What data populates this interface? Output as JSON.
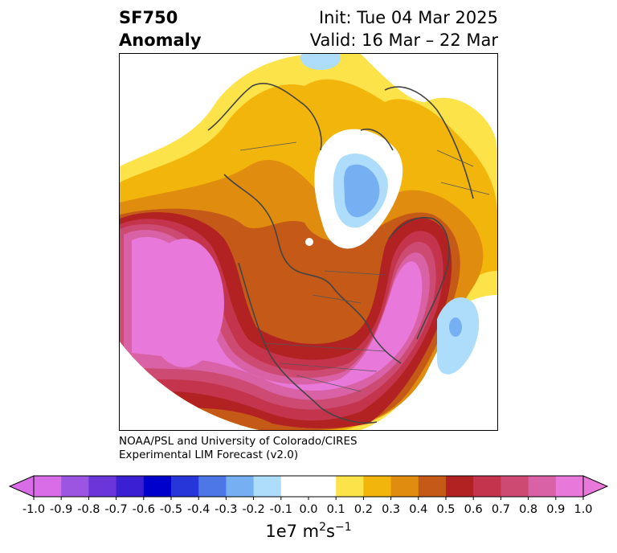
{
  "header": {
    "variable": "SF750",
    "subtitle": "Anomaly",
    "init": "Init: Tue 04 Mar 2025",
    "valid": "Valid: 16 Mar – 22 Mar"
  },
  "credit": {
    "line1": "NOAA/PSL and University of Colorado/CIRES",
    "line2": "Experimental LIM Forecast (v2.0)"
  },
  "colorbar": {
    "ticks": [
      "-1.0",
      "-0.9",
      "-0.8",
      "-0.7",
      "-0.6",
      "-0.5",
      "-0.4",
      "-0.3",
      "-0.2",
      "-0.1",
      "0.0",
      "0.1",
      "0.2",
      "0.3",
      "0.4",
      "0.5",
      "0.6",
      "0.7",
      "0.8",
      "0.9",
      "1.0"
    ],
    "colors": [
      "#d96de8",
      "#9b55e1",
      "#6a36da",
      "#3b1fd3",
      "#0000cc",
      "#2636d9",
      "#4d76e6",
      "#76b0f2",
      "#aedcfb",
      "#ffffff",
      "#ffffff",
      "#fde34a",
      "#f2b50b",
      "#e08c0f",
      "#c45918",
      "#b22222",
      "#c4344c",
      "#cd4a73",
      "#d862a5",
      "#e878da"
    ],
    "underflow_color": "#d96de8",
    "overflow_color": "#e878da",
    "units_base": "1e7 m",
    "units_exp1": "2",
    "units_mid": "s",
    "units_exp2": "−1"
  },
  "map": {
    "projection": "north-polar-stereographic",
    "land_outline_color": "#444444",
    "anomaly_features": [
      {
        "name": "pacific-high",
        "sign": "positive",
        "peak": 1.0
      },
      {
        "name": "north-america-high",
        "sign": "positive",
        "peak": 1.0
      },
      {
        "name": "arctic-low",
        "sign": "negative",
        "peak": -0.3
      },
      {
        "name": "north-pacific-low",
        "sign": "negative",
        "peak": -0.3
      }
    ]
  }
}
